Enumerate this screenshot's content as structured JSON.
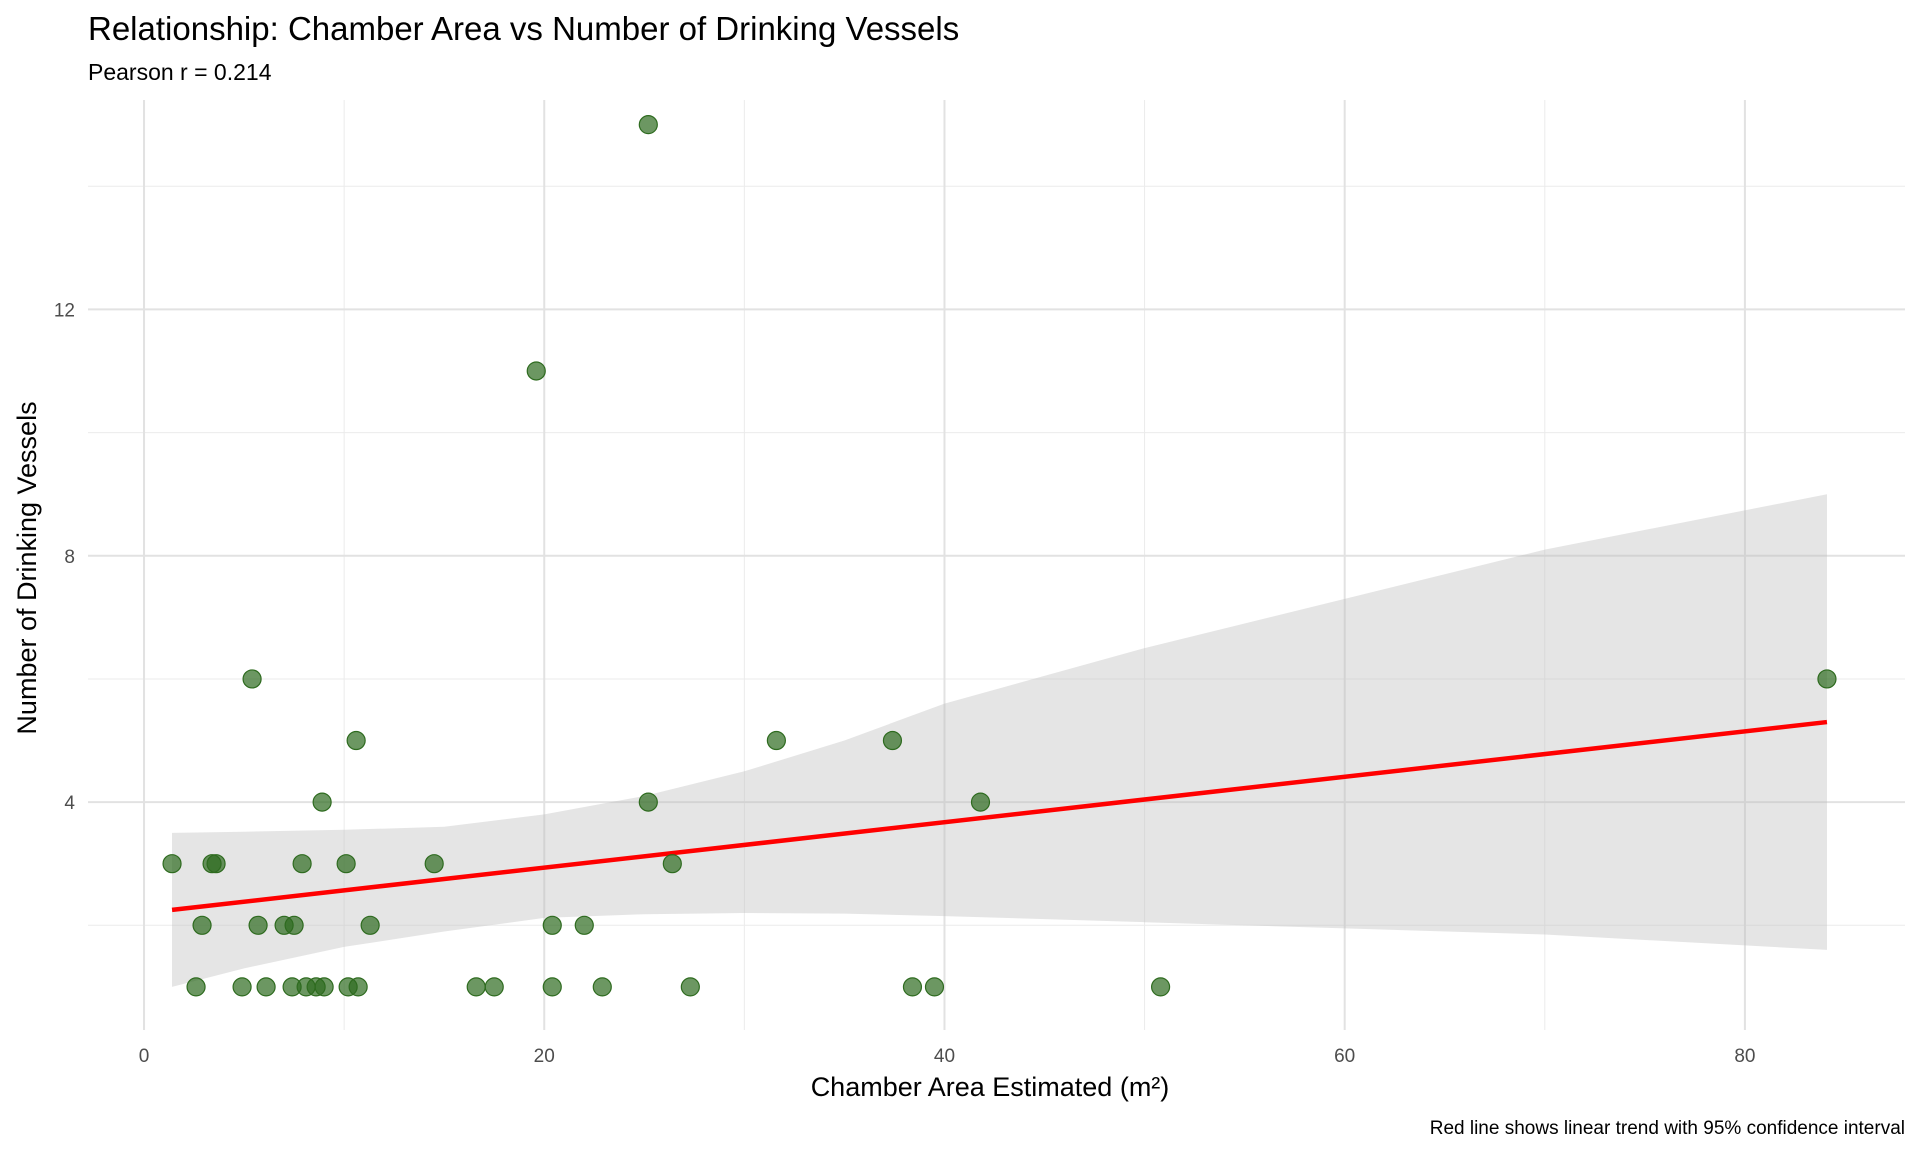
{
  "chart_data": {
    "type": "scatter",
    "title": "Relationship: Chamber Area vs Number of Drinking Vessels",
    "subtitle": "Pearson r = 0.214",
    "xlabel": "Chamber Area Estimated (m²)",
    "ylabel": "Number of Drinking Vessels",
    "caption": "Red line shows linear trend with 95% confidence interval",
    "xlim": [
      -2.8,
      88
    ],
    "ylim": [
      0.3,
      15.4
    ],
    "x_ticks": [
      0,
      20,
      40,
      60,
      80
    ],
    "x_tick_labels": [
      "0",
      "20",
      "40",
      "60",
      "80"
    ],
    "y_ticks": [
      4,
      8,
      12
    ],
    "y_tick_labels": [
      "4",
      "8",
      "12"
    ],
    "x_minor": [
      10,
      30,
      50,
      70
    ],
    "y_minor": [
      2,
      6,
      10,
      14
    ],
    "grid": true,
    "colors": {
      "points": "#2e6b1f",
      "trend": "#ff0000",
      "band": "#bfbfbf",
      "grid": "#ebebeb"
    },
    "points": [
      {
        "x": 1.4,
        "y": 3
      },
      {
        "x": 2.6,
        "y": 1
      },
      {
        "x": 2.9,
        "y": 2
      },
      {
        "x": 3.4,
        "y": 3
      },
      {
        "x": 3.6,
        "y": 3
      },
      {
        "x": 4.9,
        "y": 1
      },
      {
        "x": 5.4,
        "y": 6
      },
      {
        "x": 5.7,
        "y": 2
      },
      {
        "x": 6.1,
        "y": 1
      },
      {
        "x": 7.0,
        "y": 2
      },
      {
        "x": 7.4,
        "y": 1
      },
      {
        "x": 7.5,
        "y": 2
      },
      {
        "x": 7.9,
        "y": 3
      },
      {
        "x": 8.1,
        "y": 1
      },
      {
        "x": 8.6,
        "y": 1
      },
      {
        "x": 8.9,
        "y": 4
      },
      {
        "x": 9.0,
        "y": 1
      },
      {
        "x": 10.1,
        "y": 3
      },
      {
        "x": 10.2,
        "y": 1
      },
      {
        "x": 10.6,
        "y": 5
      },
      {
        "x": 10.7,
        "y": 1
      },
      {
        "x": 11.3,
        "y": 2
      },
      {
        "x": 14.5,
        "y": 3
      },
      {
        "x": 16.6,
        "y": 1
      },
      {
        "x": 17.5,
        "y": 1
      },
      {
        "x": 19.6,
        "y": 11
      },
      {
        "x": 20.4,
        "y": 2
      },
      {
        "x": 20.4,
        "y": 1
      },
      {
        "x": 22.0,
        "y": 2
      },
      {
        "x": 22.9,
        "y": 1
      },
      {
        "x": 25.2,
        "y": 15
      },
      {
        "x": 25.2,
        "y": 4
      },
      {
        "x": 26.4,
        "y": 3
      },
      {
        "x": 27.3,
        "y": 1
      },
      {
        "x": 31.6,
        "y": 5
      },
      {
        "x": 37.4,
        "y": 5
      },
      {
        "x": 38.4,
        "y": 1
      },
      {
        "x": 39.5,
        "y": 1
      },
      {
        "x": 41.8,
        "y": 4
      },
      {
        "x": 50.8,
        "y": 1
      },
      {
        "x": 84.1,
        "y": 6
      }
    ],
    "trend_line": {
      "x": [
        1.4,
        84.1
      ],
      "y": [
        2.25,
        5.3
      ]
    },
    "confidence_band": {
      "x": [
        1.4,
        5,
        10,
        15,
        20,
        25,
        30,
        35,
        40,
        50,
        60,
        70,
        84.1
      ],
      "lower": [
        1.0,
        1.3,
        1.65,
        1.9,
        2.12,
        2.18,
        2.2,
        2.19,
        2.15,
        2.05,
        1.95,
        1.85,
        1.6
      ],
      "upper": [
        3.5,
        3.52,
        3.55,
        3.6,
        3.8,
        4.1,
        4.5,
        5.0,
        5.6,
        6.5,
        7.3,
        8.1,
        9.0
      ]
    }
  }
}
